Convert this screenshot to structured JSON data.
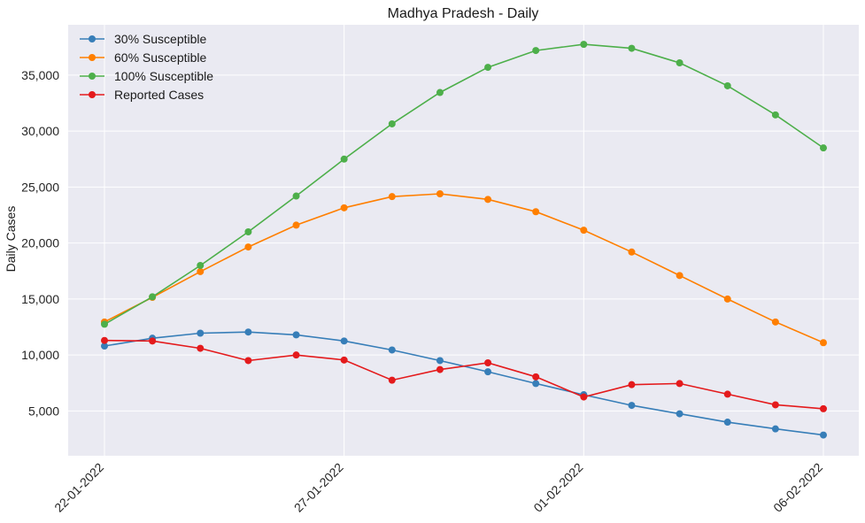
{
  "chart_data": {
    "type": "line",
    "title": "Madhya Pradesh - Daily",
    "xlabel": "",
    "ylabel": "Daily Cases",
    "x": [
      "22-01-2022",
      "23-01-2022",
      "24-01-2022",
      "25-01-2022",
      "26-01-2022",
      "27-01-2022",
      "28-01-2022",
      "29-01-2022",
      "30-01-2022",
      "31-01-2022",
      "01-02-2022",
      "02-02-2022",
      "03-02-2022",
      "04-02-2022",
      "05-02-2022",
      "06-02-2022"
    ],
    "x_ticks": [
      "22-01-2022",
      "27-01-2022",
      "01-02-2022",
      "06-02-2022"
    ],
    "y_ticks": [
      "5,000",
      "10,000",
      "15,000",
      "20,000",
      "25,000",
      "30,000",
      "35,000"
    ],
    "y_tick_values": [
      5000,
      10000,
      15000,
      20000,
      25000,
      30000,
      35000
    ],
    "ylim": [
      1000,
      39500
    ],
    "grid": true,
    "legend": "top-left",
    "background": "#eaeaf2",
    "series": [
      {
        "name": "30% Susceptible",
        "color": "#377eb8",
        "values": [
          10800,
          11500,
          11950,
          12050,
          11800,
          11250,
          10450,
          9500,
          8500,
          7450,
          6450,
          5500,
          4750,
          4000,
          3400,
          2850
        ]
      },
      {
        "name": "60% Susceptible",
        "color": "#ff7f00",
        "values": [
          12950,
          15150,
          17450,
          19650,
          21600,
          23150,
          24150,
          24400,
          23900,
          22800,
          21150,
          19200,
          17100,
          15000,
          12950,
          11100
        ]
      },
      {
        "name": "100% Susceptible",
        "color": "#4daf4a",
        "values": [
          12750,
          15200,
          18000,
          21000,
          24200,
          27500,
          30650,
          33450,
          35700,
          37200,
          37750,
          37400,
          36100,
          34050,
          31450,
          28500
        ]
      },
      {
        "name": "Reported Cases",
        "color": "#e41a1c",
        "values": [
          11300,
          11250,
          10600,
          9500,
          10000,
          9550,
          7750,
          8700,
          9300,
          8050,
          6250,
          7350,
          7450,
          6500,
          5550,
          5200
        ]
      }
    ]
  }
}
